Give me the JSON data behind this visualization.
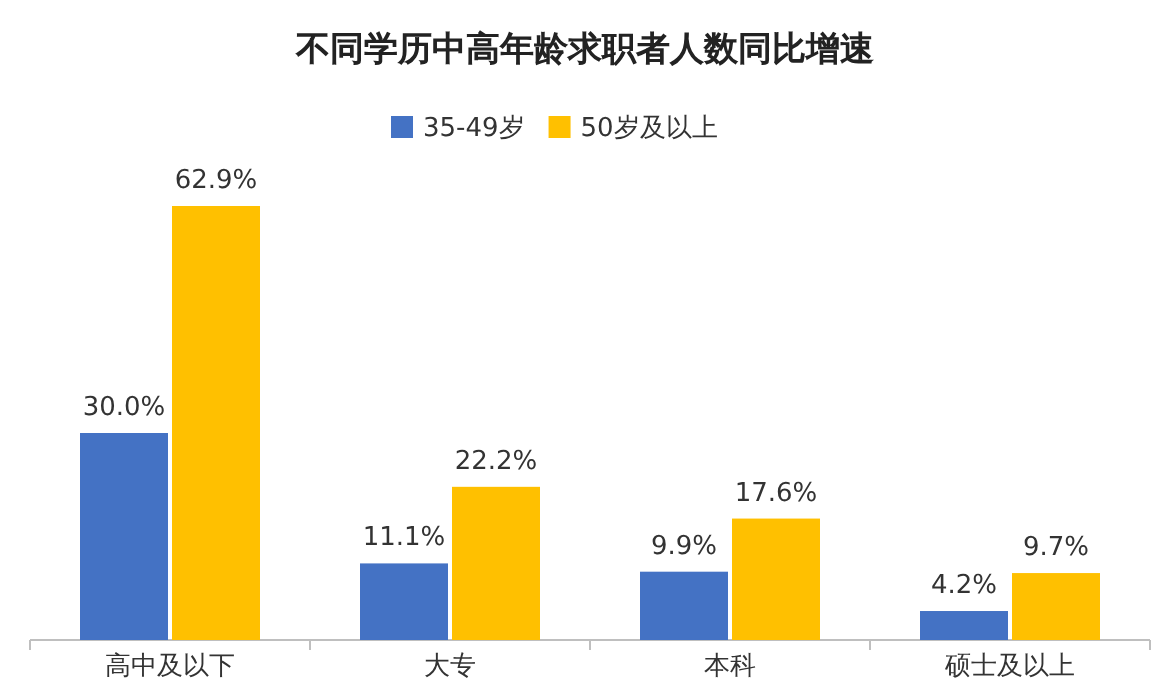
{
  "chart_data": {
    "type": "bar",
    "title": "不同学历中高年龄求职者人数同比增速",
    "categories": [
      "高中及以下",
      "大专",
      "本科",
      "硕士及以上"
    ],
    "series": [
      {
        "name": "35-49岁",
        "color": "#4472c4",
        "values": [
          30.0,
          11.1,
          9.9,
          4.2
        ],
        "value_labels": [
          "30.0%",
          "11.1%",
          "9.9%",
          "4.2%"
        ]
      },
      {
        "name": "50岁及以上",
        "color": "#ffc000",
        "values": [
          62.9,
          22.2,
          17.6,
          9.7
        ],
        "value_labels": [
          "62.9%",
          "22.2%",
          "17.6%",
          "9.7%"
        ]
      }
    ],
    "legend": "top"
  }
}
